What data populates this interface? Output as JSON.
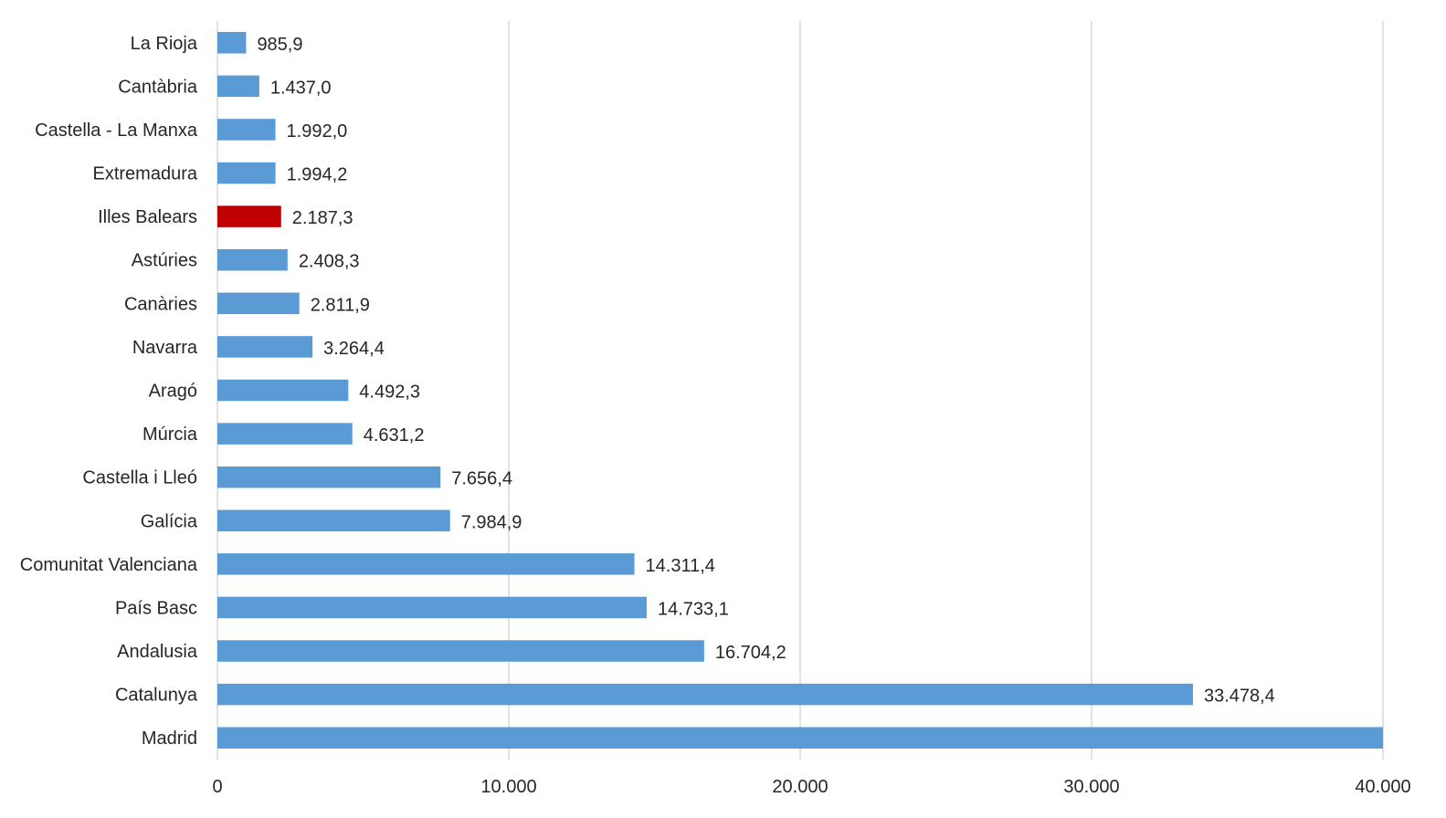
{
  "chart_data": {
    "type": "bar",
    "orientation": "horizontal",
    "categories": [
      "La Rioja",
      "Cantàbria",
      "Castella - La Manxa",
      "Extremadura",
      "Illes Balears",
      "Astúries",
      "Canàries",
      "Navarra",
      "Aragó",
      "Múrcia",
      "Castella i Lleó",
      "Galícia",
      "Comunitat Valenciana",
      "País Basc",
      "Andalusia",
      "Catalunya",
      "Madrid"
    ],
    "values": [
      985.9,
      1437.0,
      1992.0,
      1994.2,
      2187.3,
      2408.3,
      2811.9,
      3264.4,
      4492.3,
      4631.2,
      7656.4,
      7984.9,
      14311.4,
      14733.1,
      16704.2,
      33478.4,
      40000
    ],
    "value_labels": [
      "985,9",
      "1.437,0",
      "1.992,0",
      "1.994,2",
      "2.187,3",
      "2.408,3",
      "2.811,9",
      "3.264,4",
      "4.492,3",
      "4.631,2",
      "7.656,4",
      "7.984,9",
      "14.311,4",
      "14.733,1",
      "16.704,2",
      "33.478,4",
      ""
    ],
    "highlight_category": "Illes Balears",
    "colors": {
      "bar": "#5b9bd5",
      "highlight": "#c00000",
      "grid": "#d9d9d9",
      "text": "#262626"
    },
    "xlim": [
      0,
      40000
    ],
    "xticks": [
      0,
      10000,
      20000,
      30000,
      40000
    ],
    "xtick_labels": [
      "0",
      "10.000",
      "20.000",
      "30.000",
      "40.000"
    ],
    "grid": true,
    "legend": "none",
    "title": "",
    "xlabel": "",
    "ylabel": ""
  }
}
